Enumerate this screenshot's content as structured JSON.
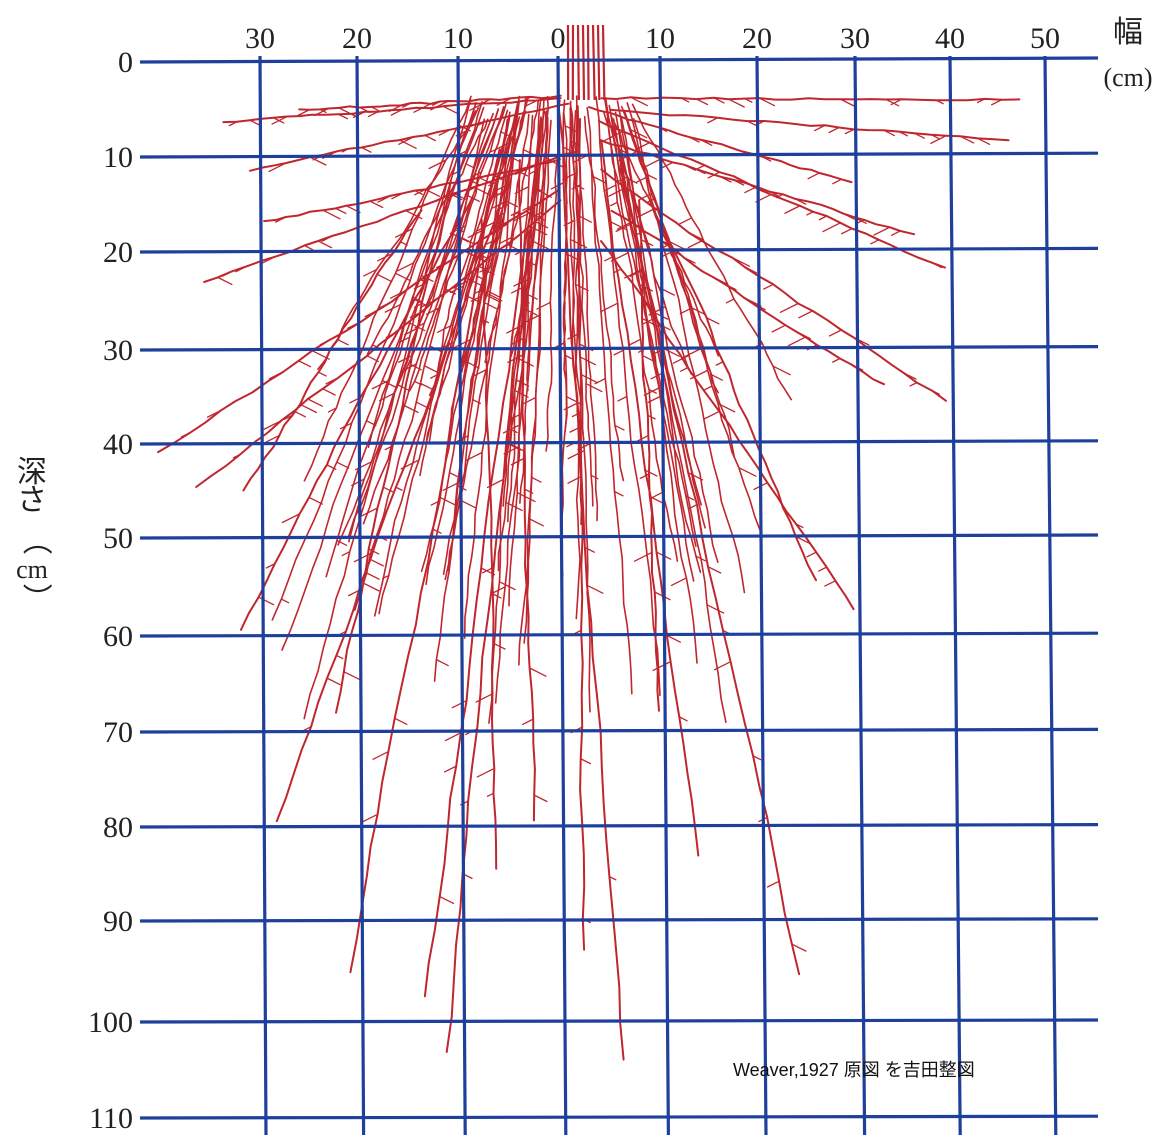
{
  "figure": {
    "x_axis": {
      "ticks": [
        "30",
        "20",
        "10",
        "0",
        "10",
        "20",
        "30",
        "40",
        "50"
      ],
      "label": "幅",
      "unit": "(cm)"
    },
    "y_axis": {
      "ticks": [
        "0",
        "10",
        "20",
        "30",
        "40",
        "50",
        "60",
        "70",
        "80",
        "90",
        "100",
        "110"
      ],
      "label_chars": [
        "深",
        "さ",
        "（",
        "cm",
        "）"
      ]
    },
    "credit": "Weaver,1927 原図 を吉田整図",
    "colors": {
      "grid": "#1f3f9c",
      "roots": "#c0262d",
      "text": "#222222"
    }
  }
}
